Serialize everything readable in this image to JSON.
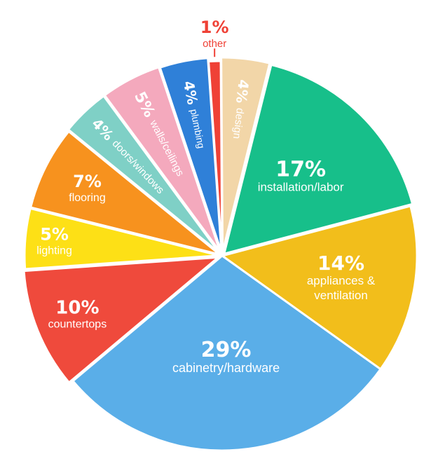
{
  "chart_data": {
    "type": "pie",
    "title": "",
    "categories": [
      "other",
      "design",
      "installation/labor",
      "appliances & ventilation",
      "cabinetry/hardware",
      "countertops",
      "lighting",
      "flooring",
      "doors/windows",
      "walls/ceilings",
      "plumbing"
    ],
    "values": [
      1,
      4,
      17,
      14,
      29,
      10,
      5,
      7,
      4,
      5,
      4
    ],
    "value_labels": [
      "1%",
      "4%",
      "17%",
      "14%",
      "29%",
      "10%",
      "5%",
      "7%",
      "4%",
      "5%",
      "4%"
    ],
    "label_lines": [
      [
        "other"
      ],
      [
        "design"
      ],
      [
        "installation/labor"
      ],
      [
        "appliances &",
        "ventilation"
      ],
      [
        "cabinetry/hardware"
      ],
      [
        "countertops"
      ],
      [
        "lighting"
      ],
      [
        "flooring"
      ],
      [
        "doors/windows"
      ],
      [
        "walls/ceilings"
      ],
      [
        "plumbing"
      ]
    ],
    "colors": [
      "#ef4136",
      "#f2d6a8",
      "#17bf8a",
      "#f2be1b",
      "#5aaee8",
      "#ef4a3c",
      "#fde016",
      "#f7921e",
      "#7fd0c6",
      "#f4a9bd",
      "#2f80d8"
    ],
    "start_angle_deg": -4,
    "direction": "clockwise"
  }
}
